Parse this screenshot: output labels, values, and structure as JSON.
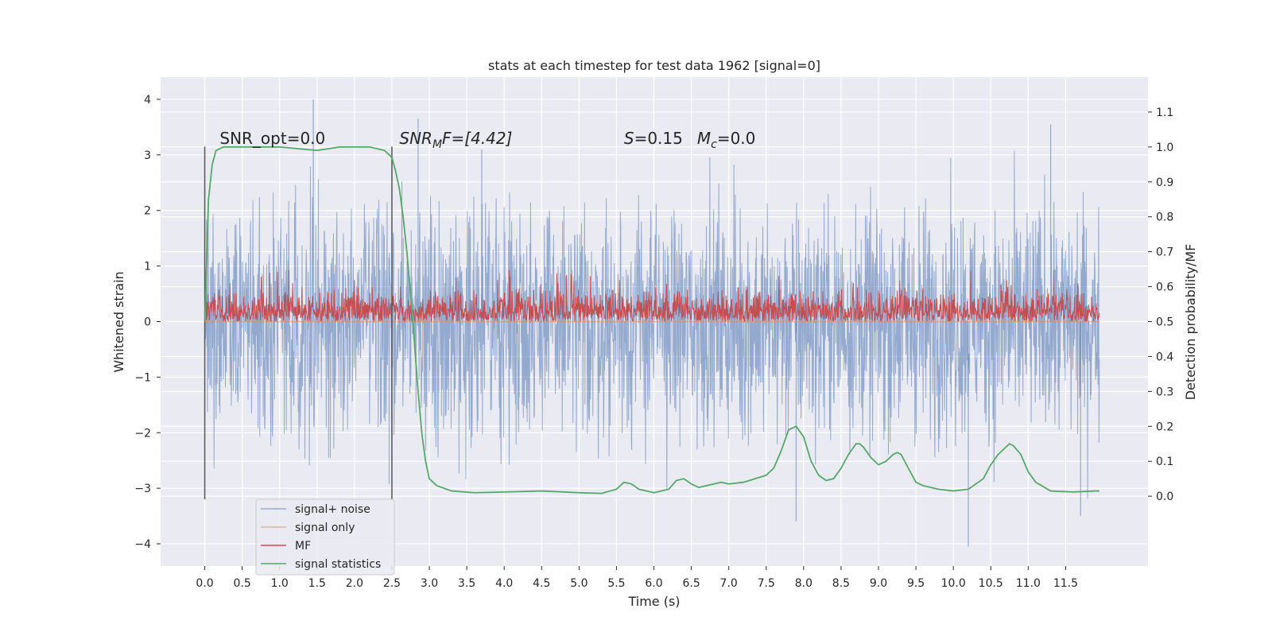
{
  "chart_data": {
    "type": "line",
    "title": "stats at each timestep for test data 1962 [signal=0]",
    "xlabel": "Time (s)",
    "ylabel_left": "Whitened strain",
    "ylabel_right": "Detection probability/MF",
    "xlim": [
      -0.59,
      12.6
    ],
    "ylim_left": [
      -4.4,
      4.4
    ],
    "ylim_right": [
      -0.2,
      1.2
    ],
    "x_ticks": [
      0.0,
      0.5,
      1.0,
      1.5,
      2.0,
      2.5,
      3.0,
      3.5,
      4.0,
      4.5,
      5.0,
      5.5,
      6.0,
      6.5,
      7.0,
      7.5,
      8.0,
      8.5,
      9.0,
      9.5,
      10.0,
      10.5,
      11.0,
      11.5
    ],
    "x_tick_labels": [
      "0.0",
      "0.5",
      "1.0",
      "1.5",
      "2.0",
      "2.5",
      "3.0",
      "3.5",
      "4.0",
      "4.5",
      "5.0",
      "5.5",
      "6.0",
      "6.5",
      "7.0",
      "7.5",
      "8.0",
      "8.5",
      "9.0",
      "9.5",
      "10.0",
      "10.5",
      "11.0",
      "11.5"
    ],
    "y_ticks_left": [
      4,
      3,
      2,
      1,
      0,
      -1,
      -2,
      -3,
      -4
    ],
    "y_tick_labels_left": [
      "4",
      "3",
      "2",
      "1",
      "0",
      "−1",
      "−2",
      "−3",
      "−4"
    ],
    "y_ticks_right": [
      1.1,
      1.0,
      0.9,
      0.8,
      0.7,
      0.6,
      0.5,
      0.4,
      0.3,
      0.2,
      0.1,
      0.0
    ],
    "y_tick_labels_right": [
      "1.1",
      "1.0",
      "0.9",
      "0.8",
      "0.7",
      "0.6",
      "0.5",
      "0.4",
      "0.3",
      "0.2",
      "0.1",
      "0.0"
    ],
    "grid": true,
    "background": "#eaeaf2",
    "legend_position": "lower-left",
    "series": [
      {
        "name": "signal+ noise",
        "color": "#4c72b0",
        "kind": "noise",
        "axis": "left",
        "x_range": [
          0.0,
          11.95
        ],
        "center": 0.0,
        "typical_amplitude": 1.9,
        "extremes": {
          "max": 4.0,
          "min": -4.05
        }
      },
      {
        "name": "signal only",
        "color": "#dd8452",
        "kind": "line",
        "axis": "left",
        "x": [
          0.0,
          11.95
        ],
        "y": [
          0.0,
          0.0
        ]
      },
      {
        "name": "MF",
        "color": "#c44e52",
        "kind": "noise",
        "axis": "right",
        "x_range": [
          0.0,
          11.95
        ],
        "band": [
          0.5,
          0.57
        ],
        "extremes": {
          "max": 0.66
        }
      },
      {
        "name": "signal statistics",
        "color": "#55a868",
        "kind": "line",
        "axis": "right",
        "x": [
          0.0,
          0.05,
          0.1,
          0.15,
          0.25,
          0.5,
          1.0,
          1.5,
          1.8,
          2.0,
          2.2,
          2.3,
          2.4,
          2.5,
          2.55,
          2.6,
          2.65,
          2.7,
          2.75,
          2.8,
          2.85,
          2.9,
          2.95,
          3.0,
          3.1,
          3.3,
          3.6,
          4.0,
          4.5,
          5.0,
          5.3,
          5.5,
          5.6,
          5.7,
          5.8,
          6.0,
          6.2,
          6.3,
          6.4,
          6.5,
          6.6,
          6.8,
          6.9,
          7.0,
          7.2,
          7.5,
          7.6,
          7.7,
          7.8,
          7.9,
          8.0,
          8.1,
          8.2,
          8.3,
          8.4,
          8.5,
          8.6,
          8.7,
          8.75,
          8.8,
          8.9,
          9.0,
          9.1,
          9.2,
          9.25,
          9.3,
          9.4,
          9.5,
          9.6,
          9.8,
          10.0,
          10.2,
          10.4,
          10.5,
          10.6,
          10.7,
          10.75,
          10.8,
          10.9,
          11.0,
          11.1,
          11.3,
          11.6,
          11.9,
          11.95
        ],
        "y": [
          0.5,
          0.85,
          0.95,
          0.99,
          1.0,
          1.0,
          1.0,
          0.99,
          1.0,
          1.0,
          1.0,
          0.995,
          0.99,
          0.97,
          0.93,
          0.88,
          0.8,
          0.7,
          0.58,
          0.44,
          0.3,
          0.18,
          0.1,
          0.05,
          0.03,
          0.015,
          0.01,
          0.012,
          0.015,
          0.01,
          0.008,
          0.02,
          0.04,
          0.035,
          0.02,
          0.01,
          0.02,
          0.045,
          0.05,
          0.035,
          0.025,
          0.035,
          0.04,
          0.035,
          0.04,
          0.06,
          0.08,
          0.13,
          0.19,
          0.2,
          0.17,
          0.1,
          0.06,
          0.045,
          0.05,
          0.08,
          0.12,
          0.15,
          0.15,
          0.14,
          0.11,
          0.09,
          0.1,
          0.12,
          0.125,
          0.12,
          0.08,
          0.04,
          0.03,
          0.02,
          0.015,
          0.02,
          0.05,
          0.09,
          0.12,
          0.14,
          0.15,
          0.145,
          0.12,
          0.07,
          0.04,
          0.015,
          0.012,
          0.015,
          0.015
        ]
      }
    ],
    "markers_vertical": [
      0.0,
      2.5
    ],
    "annotations": [
      {
        "text": "SNR_opt=0.0",
        "x": 0.2,
        "y": 3.2,
        "axis": "left"
      },
      {
        "text_main": "SNR",
        "text_sub": "M",
        "text_tail": "F=[4.42]",
        "italic_main": true,
        "x": 2.6,
        "y": 3.2,
        "axis": "left"
      },
      {
        "text_s": "S",
        "text_s_val": "=0.15",
        "text_m": "M",
        "text_m_sub": "c",
        "text_m_val": "=0.0",
        "x": 5.6,
        "y": 3.2,
        "axis": "left"
      }
    ]
  }
}
